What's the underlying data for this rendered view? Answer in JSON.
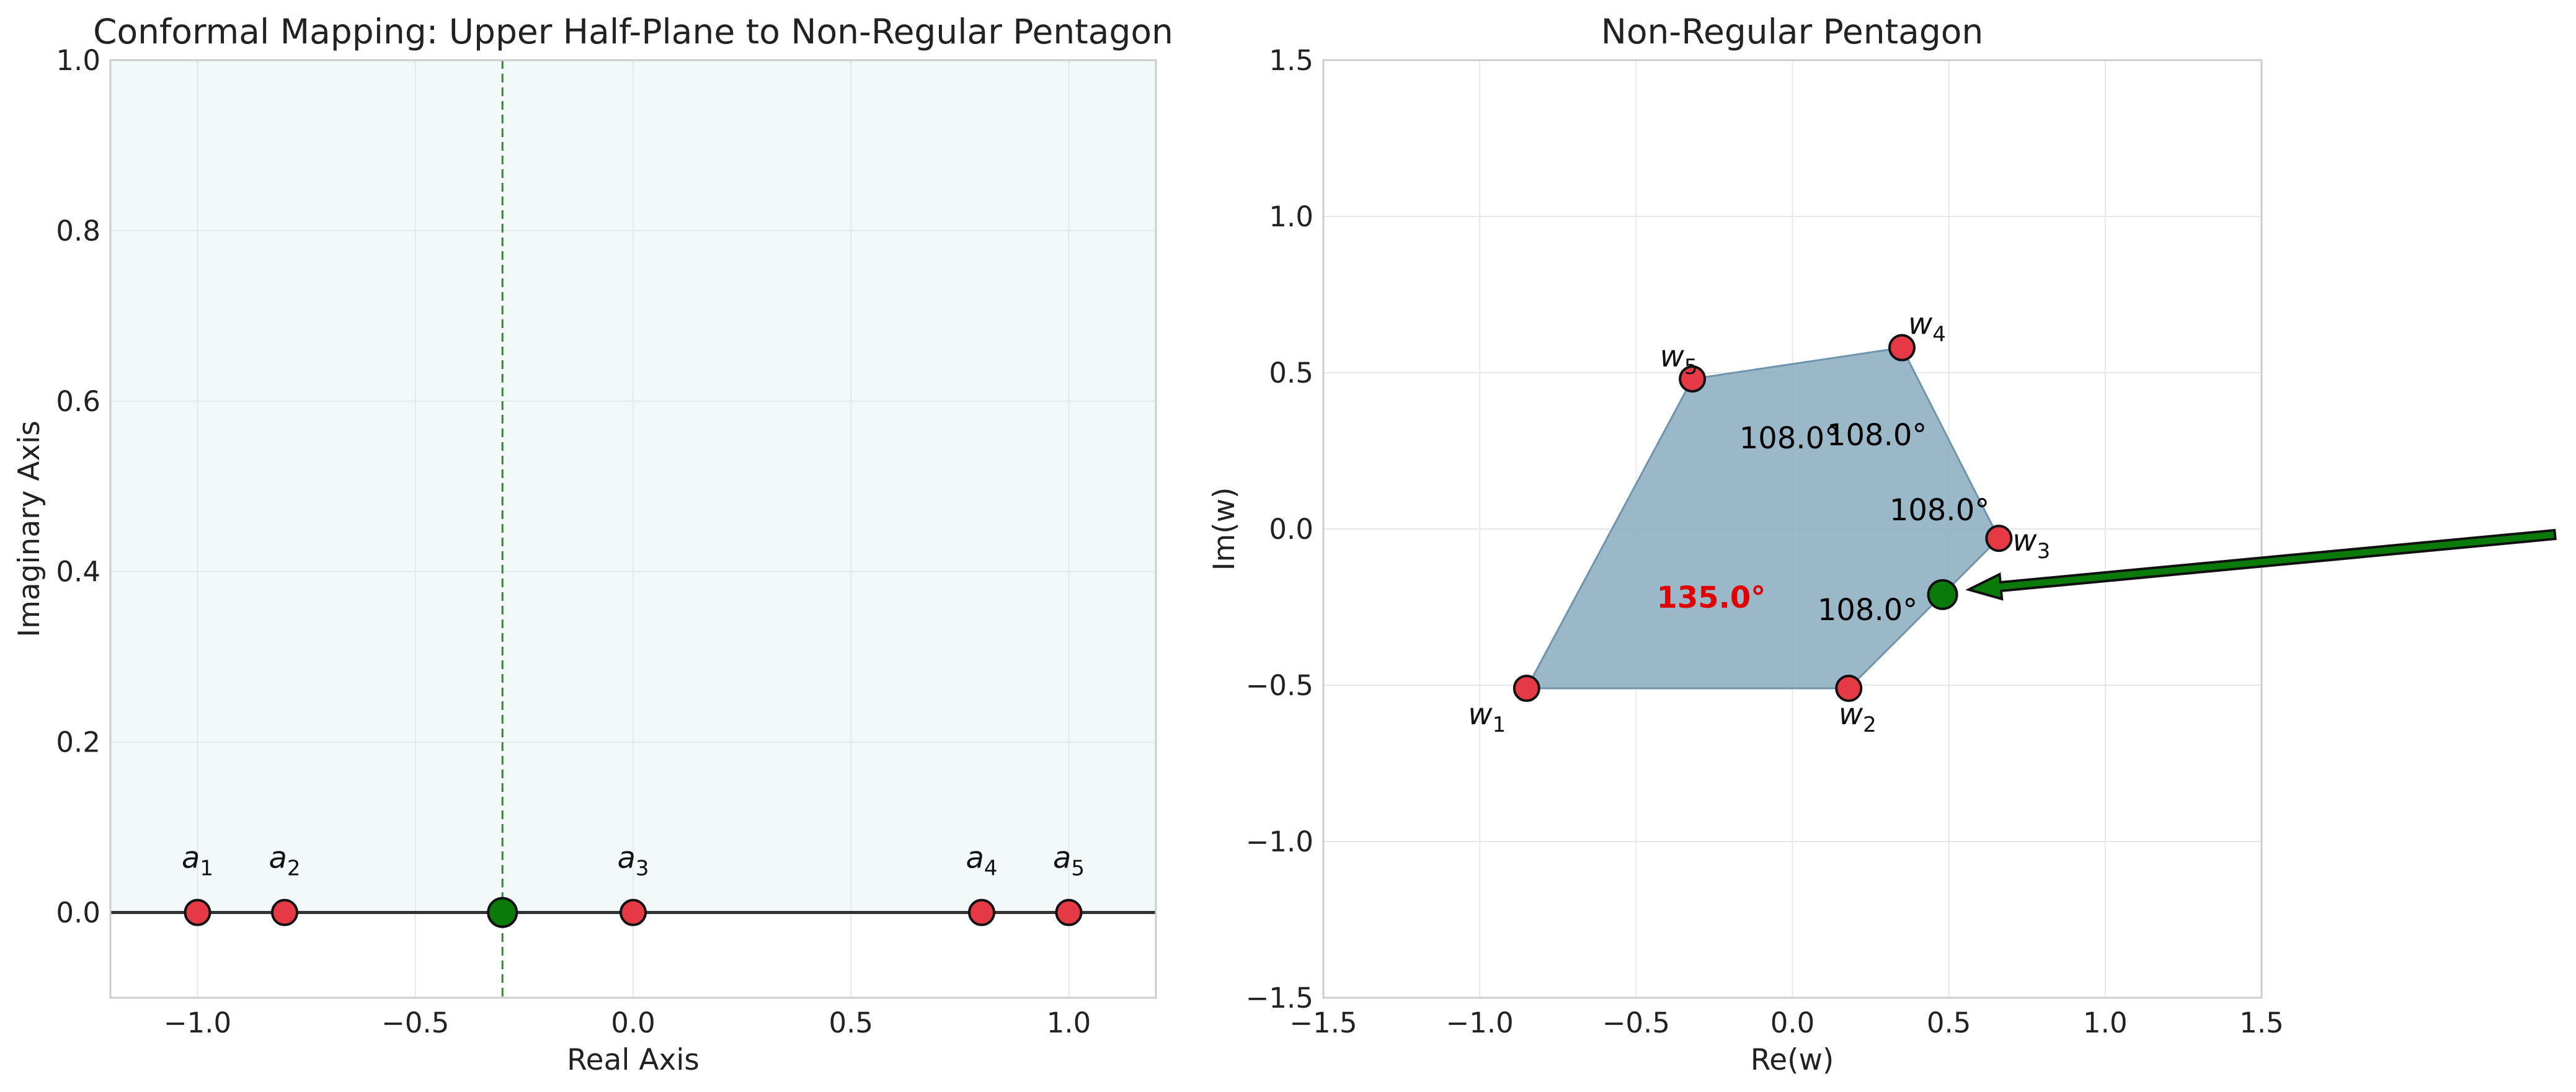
{
  "chart_data": [
    {
      "type": "scatter",
      "title": "Conformal Mapping: Upper Half-Plane to Non-Regular Pentagon",
      "xlabel": "Real Axis",
      "ylabel": "Imaginary Axis",
      "xlim": [
        -1.2,
        1.2
      ],
      "ylim": [
        -0.1,
        1.0
      ],
      "xticks": [
        "−1.0",
        "−0.5",
        "0.0",
        "0.5",
        "1.0"
      ],
      "xtick_values": [
        -1.0,
        -0.5,
        0.0,
        0.5,
        1.0
      ],
      "yticks": [
        "0.0",
        "0.2",
        "0.4",
        "0.6",
        "0.8",
        "1.0"
      ],
      "ytick_values": [
        0.0,
        0.2,
        0.4,
        0.6,
        0.8,
        1.0
      ],
      "grid": true,
      "prevertices": [
        {
          "label": "a",
          "sub": "1",
          "x": -1.0,
          "y": 0.0
        },
        {
          "label": "a",
          "sub": "2",
          "x": -0.8,
          "y": 0.0
        },
        {
          "label": "a",
          "sub": "3",
          "x": 0.0,
          "y": 0.0
        },
        {
          "label": "a",
          "sub": "4",
          "x": 0.8,
          "y": 0.0
        },
        {
          "label": "a",
          "sub": "5",
          "x": 1.0,
          "y": 0.0
        }
      ],
      "moving_point": {
        "x": -0.3,
        "y": 0.0
      },
      "guide_line_x": -0.3,
      "colors": {
        "vertex": "#e63946",
        "point": "#0a7a0a",
        "region": "#f3f9f9",
        "guide": "#2e8b2e"
      }
    },
    {
      "type": "scatter",
      "title": "Non-Regular Pentagon",
      "xlabel": "Re(w)",
      "ylabel": "Im(w)",
      "xlim": [
        -1.5,
        1.5
      ],
      "ylim": [
        -1.5,
        1.5
      ],
      "xticks": [
        "−1.5",
        "−1.0",
        "−0.5",
        "0.0",
        "0.5",
        "1.0",
        "1.5"
      ],
      "xtick_values": [
        -1.5,
        -1.0,
        -0.5,
        0.0,
        0.5,
        1.0,
        1.5
      ],
      "yticks": [
        "−1.5",
        "−1.0",
        "−0.5",
        "0.0",
        "0.5",
        "1.0",
        "1.5"
      ],
      "ytick_values": [
        -1.5,
        -1.0,
        -0.5,
        0.0,
        0.5,
        1.0,
        1.5
      ],
      "grid": true,
      "vertices": [
        {
          "label": "w",
          "sub": "1",
          "x": -0.85,
          "y": -0.51
        },
        {
          "label": "w",
          "sub": "2",
          "x": 0.18,
          "y": -0.51
        },
        {
          "label": "w",
          "sub": "3",
          "x": 0.66,
          "y": -0.03
        },
        {
          "label": "w",
          "sub": "4",
          "x": 0.35,
          "y": 0.58
        },
        {
          "label": "w",
          "sub": "5",
          "x": -0.32,
          "y": 0.48
        }
      ],
      "angle_labels": [
        {
          "text": "108.0°",
          "x": -0.01,
          "y": 0.29,
          "special": false
        },
        {
          "text": "108.0°",
          "x": 0.27,
          "y": 0.3,
          "special": false
        },
        {
          "text": "108.0°",
          "x": 0.47,
          "y": 0.06,
          "special": false
        },
        {
          "text": "108.0°",
          "x": 0.24,
          "y": -0.26,
          "special": false
        },
        {
          "text": "135.0°",
          "x": -0.26,
          "y": -0.22,
          "special": true
        }
      ],
      "image_point": {
        "x": 0.48,
        "y": -0.21
      },
      "colors": {
        "polygon": "#8aabc0",
        "polygon_edge": "#6f94ad",
        "vertex": "#e63946",
        "point": "#0a7a0a",
        "arrow": "#0a7a0a"
      }
    }
  ]
}
